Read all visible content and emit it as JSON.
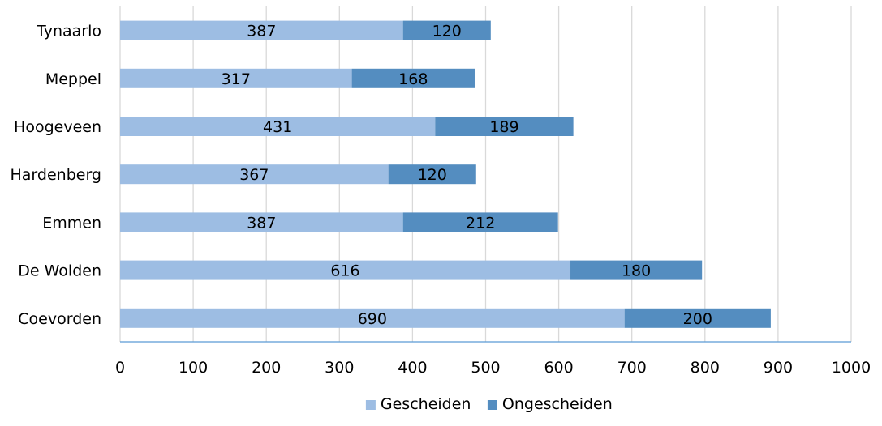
{
  "chart_data": {
    "type": "bar",
    "orientation": "horizontal",
    "stacked": true,
    "title": "",
    "xlabel": "",
    "ylabel": "",
    "xlim": [
      0,
      1000
    ],
    "x_ticks": [
      0,
      100,
      200,
      300,
      400,
      500,
      600,
      700,
      800,
      900,
      1000
    ],
    "grid": "vertical gridlines",
    "legend_position": "bottom",
    "categories": [
      "Tynaarlo",
      "Meppel",
      "Hoogeveen",
      "Hardenberg",
      "Emmen",
      "De Wolden",
      "Coevorden"
    ],
    "series": [
      {
        "name": "Gescheiden",
        "color": "#9dbde3",
        "values": [
          387,
          317,
          431,
          367,
          387,
          616,
          690
        ]
      },
      {
        "name": "Ongescheiden",
        "color": "#548dc0",
        "values": [
          120,
          168,
          189,
          120,
          212,
          180,
          200
        ]
      }
    ],
    "colors": {
      "grid": "#d9d9d9",
      "axis": "#5b9bd5",
      "text": "#000000"
    }
  }
}
